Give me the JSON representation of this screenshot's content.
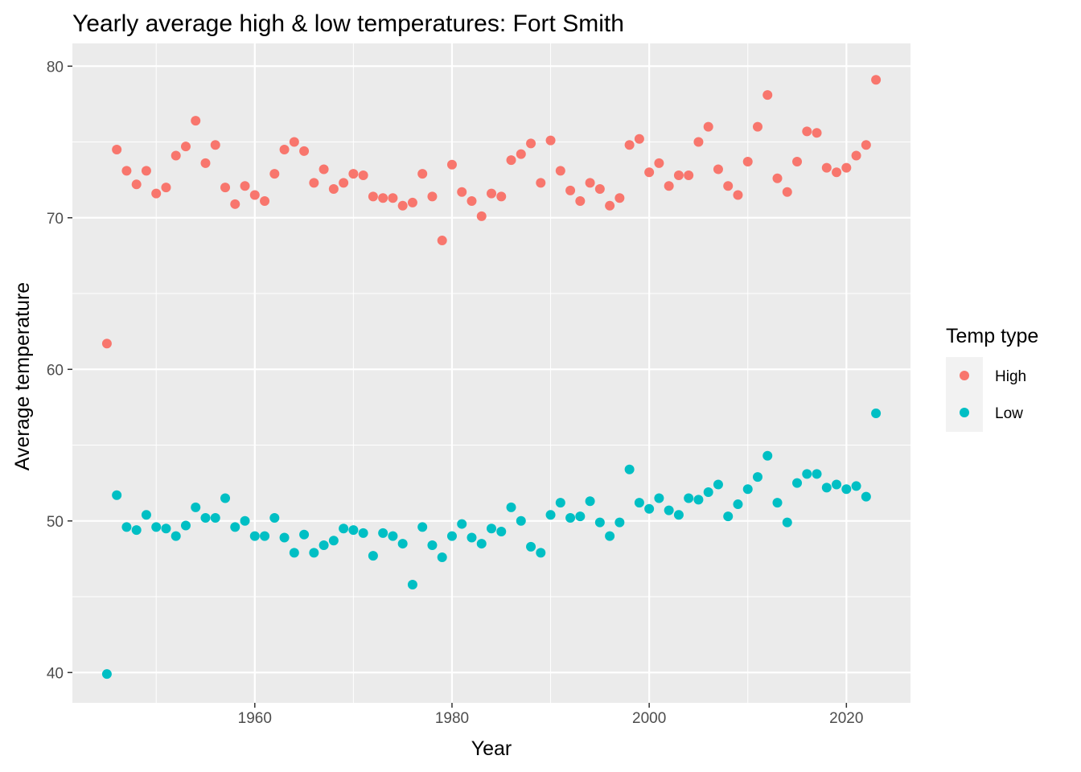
{
  "chart_data": {
    "type": "scatter",
    "title": "Yearly average high & low temperatures: Fort Smith",
    "xlabel": "Year",
    "ylabel": "Average temperature",
    "xlim": [
      1941.5,
      2026.5
    ],
    "ylim": [
      38,
      81.5
    ],
    "x_ticks": [
      1960,
      1980,
      2000,
      2020
    ],
    "y_ticks": [
      40,
      50,
      60,
      70,
      80
    ],
    "grid": true,
    "legend": {
      "title": "Temp type",
      "position": "right"
    },
    "series": [
      {
        "name": "High",
        "color": "#F8766D",
        "points": [
          [
            1945,
            61.7
          ],
          [
            1946,
            74.5
          ],
          [
            1947,
            73.1
          ],
          [
            1948,
            72.2
          ],
          [
            1949,
            73.1
          ],
          [
            1950,
            71.6
          ],
          [
            1951,
            72.0
          ],
          [
            1952,
            74.1
          ],
          [
            1953,
            74.7
          ],
          [
            1954,
            76.4
          ],
          [
            1955,
            73.6
          ],
          [
            1956,
            74.8
          ],
          [
            1957,
            72.0
          ],
          [
            1958,
            70.9
          ],
          [
            1959,
            72.1
          ],
          [
            1960,
            71.5
          ],
          [
            1961,
            71.1
          ],
          [
            1962,
            72.9
          ],
          [
            1963,
            74.5
          ],
          [
            1964,
            75.0
          ],
          [
            1965,
            74.4
          ],
          [
            1966,
            72.3
          ],
          [
            1967,
            73.2
          ],
          [
            1968,
            71.9
          ],
          [
            1969,
            72.3
          ],
          [
            1970,
            72.9
          ],
          [
            1971,
            72.8
          ],
          [
            1972,
            71.4
          ],
          [
            1973,
            71.3
          ],
          [
            1974,
            71.3
          ],
          [
            1975,
            70.8
          ],
          [
            1976,
            71.0
          ],
          [
            1977,
            72.9
          ],
          [
            1978,
            71.4
          ],
          [
            1979,
            68.5
          ],
          [
            1980,
            73.5
          ],
          [
            1981,
            71.7
          ],
          [
            1982,
            71.1
          ],
          [
            1983,
            70.1
          ],
          [
            1984,
            71.6
          ],
          [
            1985,
            71.4
          ],
          [
            1986,
            73.8
          ],
          [
            1987,
            74.2
          ],
          [
            1988,
            74.9
          ],
          [
            1989,
            72.3
          ],
          [
            1990,
            75.1
          ],
          [
            1991,
            73.1
          ],
          [
            1992,
            71.8
          ],
          [
            1993,
            71.1
          ],
          [
            1994,
            72.3
          ],
          [
            1995,
            71.9
          ],
          [
            1996,
            70.8
          ],
          [
            1997,
            71.3
          ],
          [
            1998,
            74.8
          ],
          [
            1999,
            75.2
          ],
          [
            2000,
            73.0
          ],
          [
            2001,
            73.6
          ],
          [
            2002,
            72.1
          ],
          [
            2003,
            72.8
          ],
          [
            2004,
            72.8
          ],
          [
            2005,
            75.0
          ],
          [
            2006,
            76.0
          ],
          [
            2007,
            73.2
          ],
          [
            2008,
            72.1
          ],
          [
            2009,
            71.5
          ],
          [
            2010,
            73.7
          ],
          [
            2011,
            76.0
          ],
          [
            2012,
            78.1
          ],
          [
            2013,
            72.6
          ],
          [
            2014,
            71.7
          ],
          [
            2015,
            73.7
          ],
          [
            2016,
            75.7
          ],
          [
            2017,
            75.6
          ],
          [
            2018,
            73.3
          ],
          [
            2019,
            73.0
          ],
          [
            2020,
            73.3
          ],
          [
            2021,
            74.1
          ],
          [
            2022,
            74.8
          ],
          [
            2023,
            79.1
          ]
        ]
      },
      {
        "name": "Low",
        "color": "#00BFC4",
        "points": [
          [
            1945,
            39.9
          ],
          [
            1946,
            51.7
          ],
          [
            1947,
            49.6
          ],
          [
            1948,
            49.4
          ],
          [
            1949,
            50.4
          ],
          [
            1950,
            49.6
          ],
          [
            1951,
            49.5
          ],
          [
            1952,
            49.0
          ],
          [
            1953,
            49.7
          ],
          [
            1954,
            50.9
          ],
          [
            1955,
            50.2
          ],
          [
            1956,
            50.2
          ],
          [
            1957,
            51.5
          ],
          [
            1958,
            49.6
          ],
          [
            1959,
            50.0
          ],
          [
            1960,
            49.0
          ],
          [
            1961,
            49.0
          ],
          [
            1962,
            50.2
          ],
          [
            1963,
            48.9
          ],
          [
            1964,
            47.9
          ],
          [
            1965,
            49.1
          ],
          [
            1966,
            47.9
          ],
          [
            1967,
            48.4
          ],
          [
            1968,
            48.7
          ],
          [
            1969,
            49.5
          ],
          [
            1970,
            49.4
          ],
          [
            1971,
            49.2
          ],
          [
            1972,
            47.7
          ],
          [
            1973,
            49.2
          ],
          [
            1974,
            49.0
          ],
          [
            1975,
            48.5
          ],
          [
            1976,
            45.8
          ],
          [
            1977,
            49.6
          ],
          [
            1978,
            48.4
          ],
          [
            1979,
            47.6
          ],
          [
            1980,
            49.0
          ],
          [
            1981,
            49.8
          ],
          [
            1982,
            48.9
          ],
          [
            1983,
            48.5
          ],
          [
            1984,
            49.5
          ],
          [
            1985,
            49.3
          ],
          [
            1986,
            50.9
          ],
          [
            1987,
            50.0
          ],
          [
            1988,
            48.3
          ],
          [
            1989,
            47.9
          ],
          [
            1990,
            50.4
          ],
          [
            1991,
            51.2
          ],
          [
            1992,
            50.2
          ],
          [
            1993,
            50.3
          ],
          [
            1994,
            51.3
          ],
          [
            1995,
            49.9
          ],
          [
            1996,
            49.0
          ],
          [
            1997,
            49.9
          ],
          [
            1998,
            53.4
          ],
          [
            1999,
            51.2
          ],
          [
            2000,
            50.8
          ],
          [
            2001,
            51.5
          ],
          [
            2002,
            50.7
          ],
          [
            2003,
            50.4
          ],
          [
            2004,
            51.5
          ],
          [
            2005,
            51.4
          ],
          [
            2006,
            51.9
          ],
          [
            2007,
            52.4
          ],
          [
            2008,
            50.3
          ],
          [
            2009,
            51.1
          ],
          [
            2010,
            52.1
          ],
          [
            2011,
            52.9
          ],
          [
            2012,
            54.3
          ],
          [
            2013,
            51.2
          ],
          [
            2014,
            49.9
          ],
          [
            2015,
            52.5
          ],
          [
            2016,
            53.1
          ],
          [
            2017,
            53.1
          ],
          [
            2018,
            52.2
          ],
          [
            2019,
            52.4
          ],
          [
            2020,
            52.1
          ],
          [
            2021,
            52.3
          ],
          [
            2022,
            51.6
          ],
          [
            2023,
            57.1
          ]
        ]
      }
    ]
  }
}
